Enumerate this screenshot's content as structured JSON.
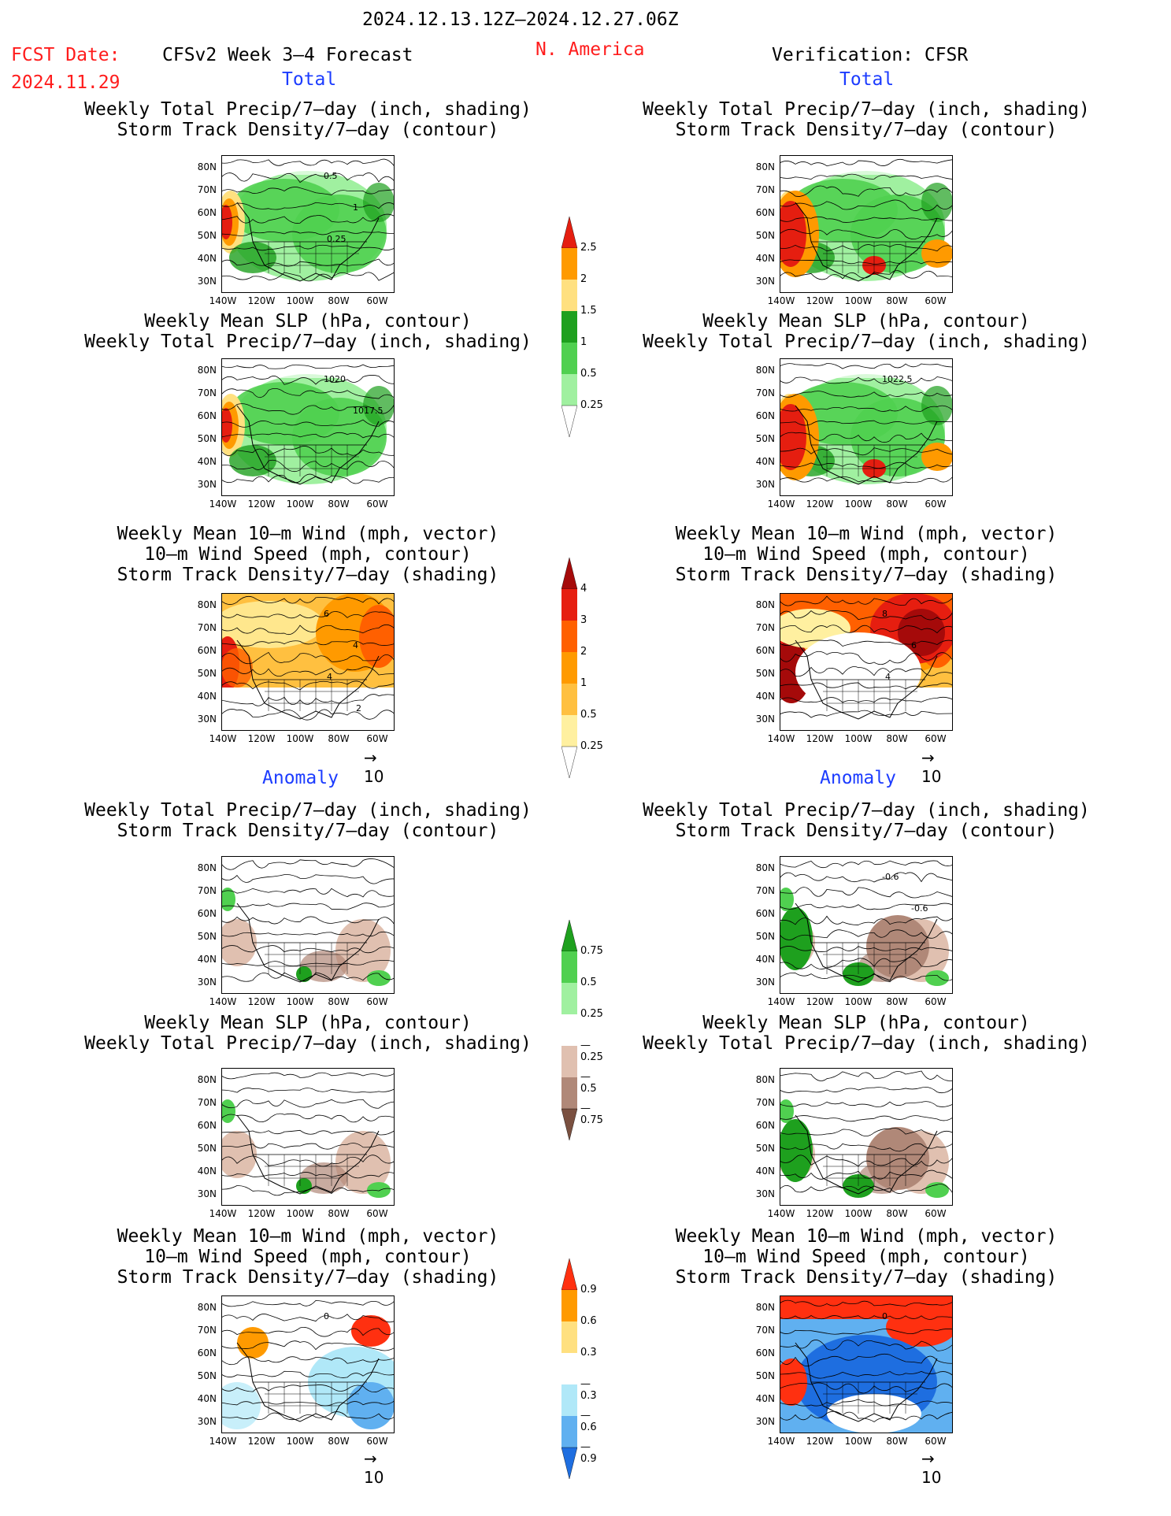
{
  "header": {
    "date_range": "2024.12.13.12Z—2024.12.27.06Z",
    "fcst_label": "FCST Date:",
    "fcst_date": "2024.11.29",
    "model": "CFSv2 Week 3–4 Forecast",
    "region": "N. America",
    "verification": "Verification: CFSR"
  },
  "sections": {
    "total": "Total",
    "anomaly": "Anomaly"
  },
  "titles": {
    "precip_storm": [
      "Weekly Total Precip/7—day (inch, shading)",
      "Storm Track Density/7—day (contour)"
    ],
    "slp_precip": [
      "Weekly Mean SLP (hPa, contour)",
      "Weekly Total Precip/7—day (inch, shading)"
    ],
    "wind": [
      "Weekly Mean 10—m Wind (mph, vector)",
      "10—m Wind Speed (mph, contour)",
      "Storm Track Density/7—day (shading)"
    ]
  },
  "axes": {
    "lat": [
      "80N",
      "70N",
      "60N",
      "50N",
      "40N",
      "30N"
    ],
    "lon": [
      "140W",
      "120W",
      "100W",
      "80W",
      "60W"
    ]
  },
  "vector_ref": "10",
  "map_labels": {
    "p1": [
      "0.5",
      "1",
      "0.25"
    ],
    "p2": [
      "1020",
      "1017.5"
    ],
    "p3": [
      "6",
      "4",
      "4",
      "2"
    ],
    "q2": [
      "1022.5"
    ],
    "q3": [
      "8",
      "6",
      "4"
    ],
    "a1": [],
    "b1": [
      "-0.6",
      "-0.6"
    ],
    "a3": [
      "0"
    ],
    "b3": [
      "0"
    ]
  },
  "colorbars": {
    "precip": {
      "labels": [
        "2.5",
        "2",
        "1.5",
        "1",
        "0.5",
        "0.25"
      ],
      "colors": [
        "#e51e10",
        "#ff9a00",
        "#ffe080",
        "#1ea01e",
        "#50d050",
        "#a0f0a0",
        "#ffffff"
      ]
    },
    "storm": {
      "labels": [
        "4",
        "3",
        "2",
        "1",
        "0.5",
        "0.25"
      ],
      "colors": [
        "#a50a0a",
        "#e61e10",
        "#ff6000",
        "#ff9a00",
        "#ffc040",
        "#fff0a0",
        "#ffffff"
      ]
    },
    "precip_anom": {
      "labels": [
        "0.75",
        "0.5",
        "0.25",
        "—0.25",
        "—0.5",
        "—0.75"
      ],
      "colors": [
        "#1ea01e",
        "#50d050",
        "#a0f0a0",
        "#ffffff",
        "#e0c0b0",
        "#b08878",
        "#7a5040"
      ]
    },
    "storm_anom": {
      "labels": [
        "0.9",
        "0.6",
        "0.3",
        "—0.3",
        "—0.6",
        "—0.9"
      ],
      "colors": [
        "#ff3010",
        "#ff9a00",
        "#ffe080",
        "#ffffff",
        "#b0e8f8",
        "#60b0f0",
        "#1e6ee0"
      ]
    }
  },
  "colors": {
    "header_red": "#ff1c1c",
    "section_blue": "#1c3cff"
  }
}
